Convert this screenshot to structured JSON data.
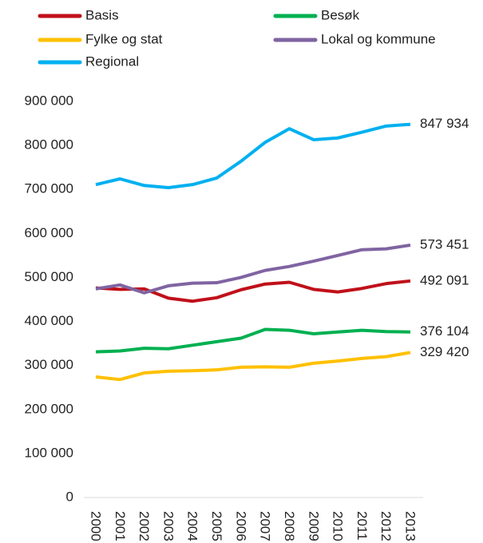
{
  "chart_data": {
    "type": "line",
    "x": [
      "2000",
      "2001",
      "2002",
      "2003",
      "2004",
      "2005",
      "2006",
      "2007",
      "2008",
      "2009",
      "2010",
      "2011",
      "2012",
      "2013"
    ],
    "ylim": [
      0,
      900000
    ],
    "yticks": [
      {
        "value": 0,
        "label": "0"
      },
      {
        "value": 100000,
        "label": "100 000"
      },
      {
        "value": 200000,
        "label": "200 000"
      },
      {
        "value": 300000,
        "label": "300 000"
      },
      {
        "value": 400000,
        "label": "400 000"
      },
      {
        "value": 500000,
        "label": "500 000"
      },
      {
        "value": 600000,
        "label": "600 000"
      },
      {
        "value": 700000,
        "label": "700 000"
      },
      {
        "value": 800000,
        "label": "800 000"
      },
      {
        "value": 900000,
        "label": "900 000"
      }
    ],
    "series": [
      {
        "name": "Basis",
        "color": "#c0101a",
        "values": [
          476000,
          473000,
          474000,
          453000,
          446000,
          454000,
          472000,
          485000,
          489000,
          473000,
          467000,
          475000,
          486000,
          492091
        ],
        "value_labels": [
          null,
          null,
          null,
          null,
          null,
          null,
          null,
          null,
          null,
          null,
          null,
          null,
          null,
          "492 091"
        ]
      },
      {
        "name": "Besøk",
        "color": "#00b050",
        "values": [
          331000,
          333000,
          339000,
          338000,
          346000,
          354000,
          362000,
          382000,
          380000,
          372000,
          376000,
          380000,
          377000,
          376104
        ],
        "value_labels": [
          null,
          null,
          null,
          null,
          null,
          null,
          null,
          null,
          null,
          null,
          null,
          null,
          null,
          "376 104"
        ]
      },
      {
        "name": "Fylke og stat",
        "color": "#ffc000",
        "values": [
          274000,
          268000,
          283000,
          287000,
          288000,
          290000,
          296000,
          297000,
          296000,
          305000,
          310000,
          316000,
          320000,
          329420
        ],
        "value_labels": [
          null,
          null,
          null,
          null,
          null,
          null,
          null,
          null,
          null,
          null,
          null,
          null,
          null,
          "329 420"
        ]
      },
      {
        "name": "Lokal og kommune",
        "color": "#8064a2",
        "values": [
          474000,
          483000,
          465000,
          481000,
          487000,
          488000,
          500000,
          516000,
          525000,
          537000,
          550000,
          563000,
          565000,
          573451
        ],
        "value_labels": [
          null,
          null,
          null,
          null,
          null,
          null,
          null,
          null,
          null,
          null,
          null,
          null,
          null,
          "573 451"
        ]
      },
      {
        "name": "Regional",
        "color": "#00b0f0",
        "values": [
          711000,
          724000,
          709000,
          704000,
          711000,
          726000,
          764000,
          807000,
          838000,
          813000,
          817000,
          830000,
          844000,
          847934
        ],
        "value_labels": [
          null,
          null,
          null,
          null,
          null,
          null,
          null,
          null,
          null,
          null,
          null,
          null,
          null,
          "847 934"
        ]
      }
    ]
  }
}
